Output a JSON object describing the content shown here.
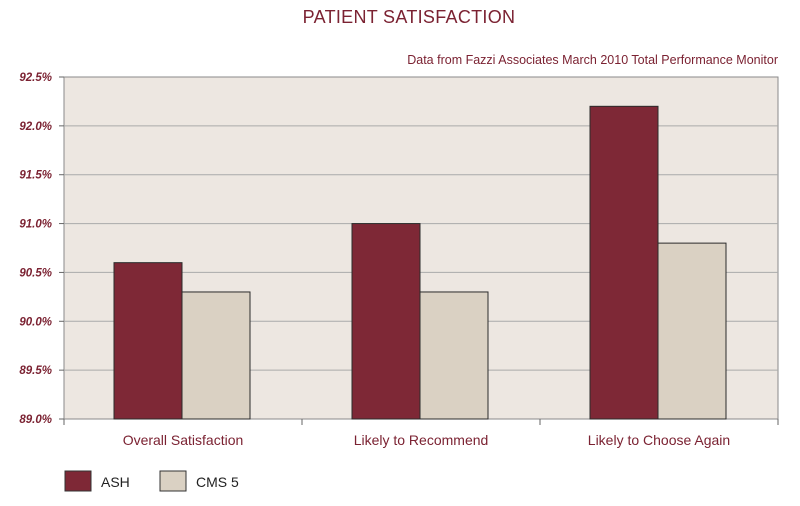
{
  "chart_data": {
    "type": "bar",
    "title": "PATIENT SATISFACTION",
    "subtitle": "Data from Fazzi Associates March 2010 Total Performance Monitor",
    "categories": [
      "Overall Satisfaction",
      "Likely to Recommend",
      "Likely to Choose Again"
    ],
    "series": [
      {
        "name": "ASH",
        "values": [
          90.6,
          91.0,
          92.2
        ],
        "color": "#7e2836"
      },
      {
        "name": "CMS 5",
        "values": [
          90.3,
          90.3,
          90.8
        ],
        "color": "#dad1c3"
      }
    ],
    "ylim": [
      89.0,
      92.5
    ],
    "yticks": [
      "89.0%",
      "89.5%",
      "90.0%",
      "90.5%",
      "91.0%",
      "91.5%",
      "92.0%",
      "92.5%"
    ],
    "ytick_values": [
      89.0,
      89.5,
      90.0,
      90.5,
      91.0,
      91.5,
      92.0,
      92.5
    ],
    "grid": true,
    "legend_position": "bottom-left",
    "colors": {
      "plot_background": "#ede7e1",
      "text": "#7b2232",
      "gridline": "#aaaaaa"
    }
  }
}
